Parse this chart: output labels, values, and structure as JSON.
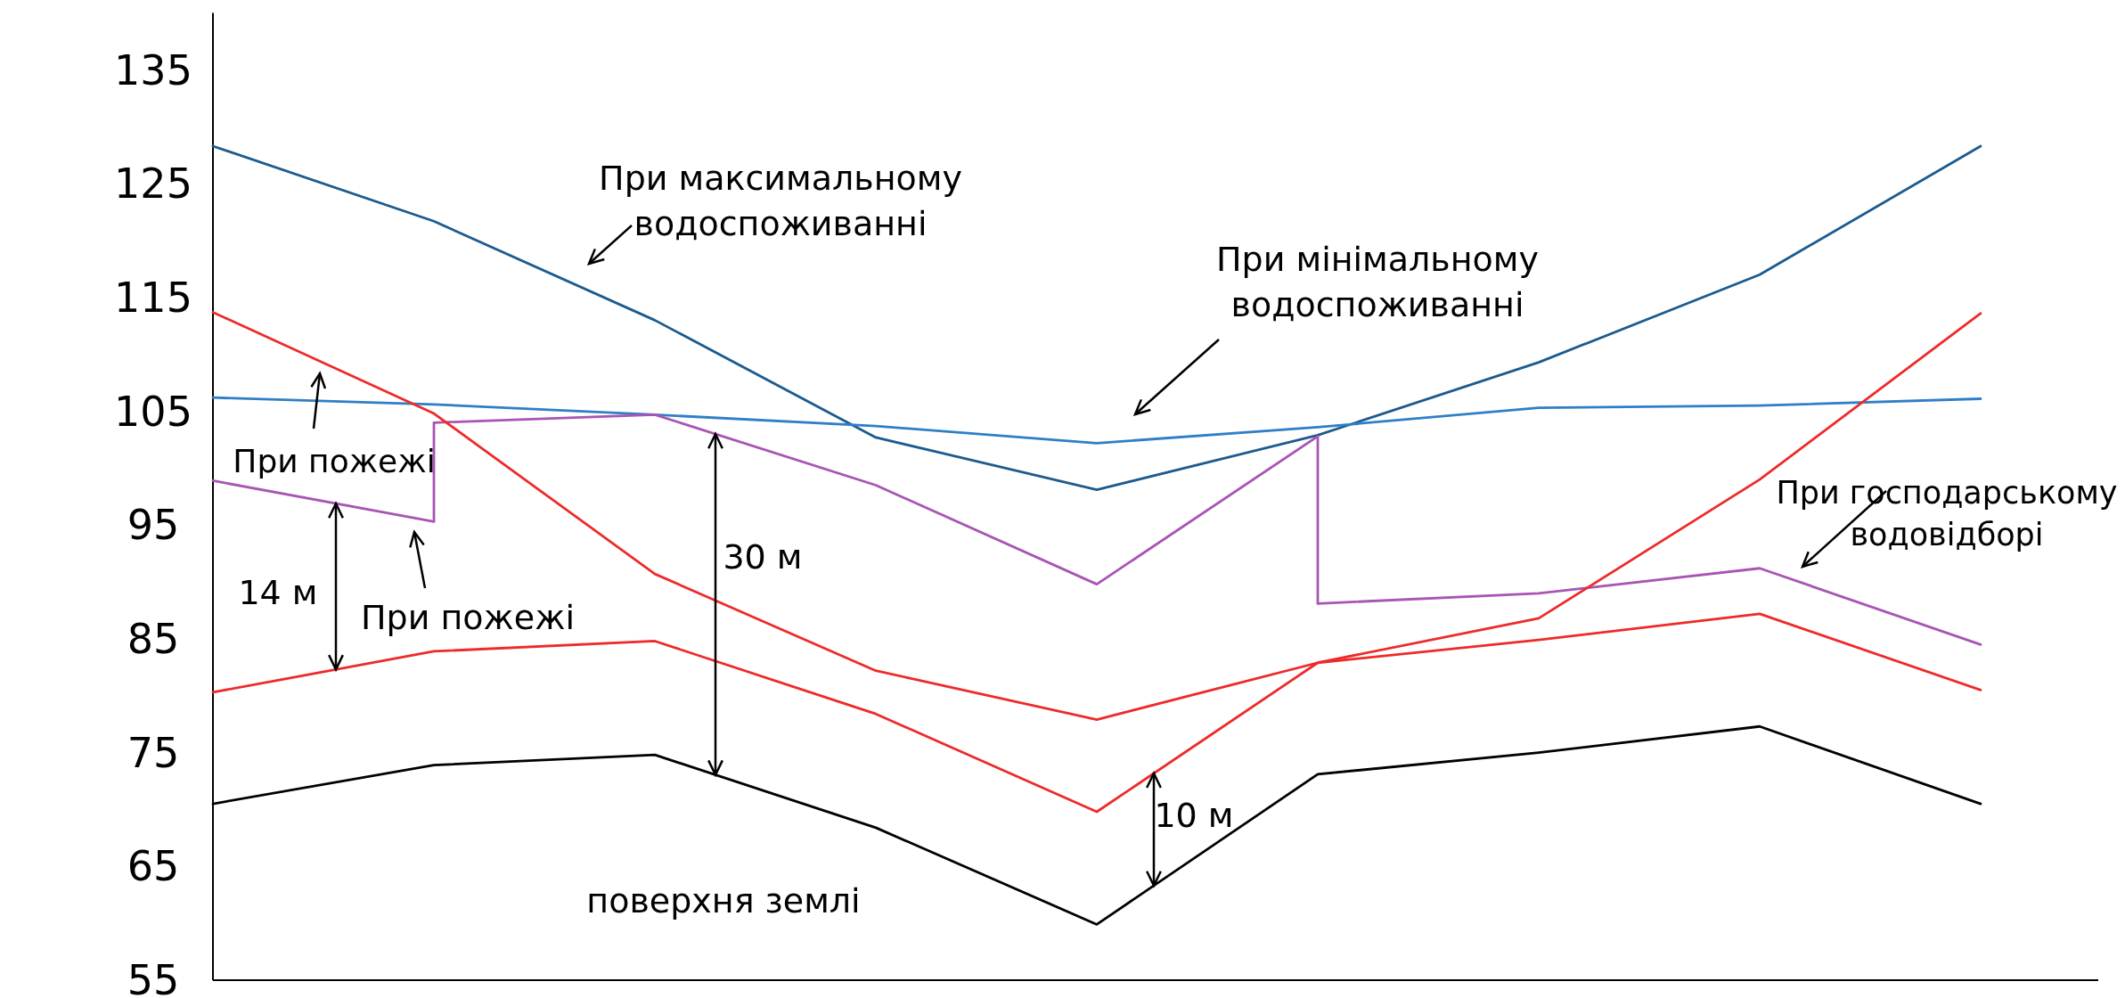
{
  "chart_data": {
    "type": "line",
    "categories": [
      null,
      null,
      null,
      null,
      null,
      null,
      null,
      null,
      null
    ],
    "ylim": [
      55,
      140
    ],
    "yticks": [
      55,
      65,
      75,
      85,
      95,
      105,
      115,
      125,
      135
    ],
    "grid": false,
    "series": [
      {
        "color": "#1b5b8f",
        "values": [
          128.3,
          121.7,
          113.0,
          102.7,
          98.1,
          102.9,
          109.3,
          117.0,
          128.3
        ]
      },
      {
        "color": "#2e7fc6",
        "values": [
          106.2,
          105.6,
          104.7,
          103.7,
          102.2,
          103.6,
          105.3,
          105.5,
          106.1
        ]
      },
      {
        "color": "#a855b3",
        "values": [
          98.9,
          95.3,
          null,
          null,
          null,
          null,
          null,
          null,
          null
        ]
      },
      {
        "color": "#a855b3",
        "values": [
          null,
          104.0,
          104.7,
          98.5,
          89.8,
          102.8,
          null,
          null,
          null
        ],
        "errors": [
          null,
          [
            95.3,
            104.0
          ],
          null,
          null,
          null,
          null,
          null,
          null,
          null
        ]
      },
      {
        "color": "#a855b3",
        "values": [
          null,
          null,
          null,
          null,
          null,
          88.1,
          89.0,
          91.2,
          84.5
        ],
        "errors": [
          null,
          null,
          null,
          null,
          null,
          [
            88.1,
            102.8
          ],
          null,
          null,
          null
        ]
      },
      {
        "color": "#ee2a2a",
        "values": [
          113.7,
          104.8,
          90.7,
          82.2,
          77.9,
          82.9,
          84.9,
          87.2,
          80.5
        ]
      },
      {
        "color": "#ee2a2a",
        "values": [
          80.3,
          83.9,
          84.8,
          78.4,
          69.8,
          82.9,
          86.8,
          99.0,
          113.6
        ]
      },
      {
        "color": "#000000",
        "values": [
          70.5,
          73.9,
          74.8,
          68.4,
          59.9,
          73.1,
          75.0,
          77.3,
          70.5
        ]
      }
    ],
    "annotations": [
      "При максимальному\nводоспоживанні",
      "При мінімальному\nводоспоживанні",
      "При господарському\nводовідборі",
      "При пожежі",
      "При пожежі",
      "14 м",
      "30 м",
      "10 м",
      "поверхня землі"
    ]
  }
}
